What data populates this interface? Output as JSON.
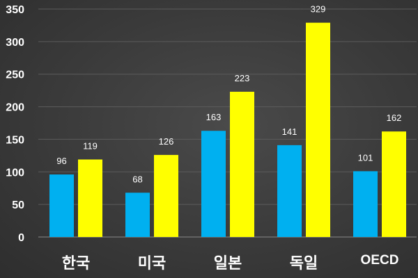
{
  "chart_data": {
    "type": "bar",
    "title": "",
    "xlabel": "",
    "ylabel": "",
    "categories": [
      "한국",
      "미국",
      "일본",
      "독일",
      "OECD"
    ],
    "series": [
      {
        "values": [
          96,
          68,
          163,
          141,
          101
        ],
        "color": "#00b0f0"
      },
      {
        "values": [
          119,
          126,
          223,
          329,
          162
        ],
        "color": "#ffff00"
      }
    ],
    "ylim": [
      0,
      350
    ],
    "yticks": [
      0,
      50,
      100,
      150,
      200,
      250,
      300,
      350
    ],
    "grid": true,
    "legend": "none",
    "data_labels": true
  },
  "colors": {
    "text": "#ffffff",
    "gridline": "#5c5c5c"
  }
}
